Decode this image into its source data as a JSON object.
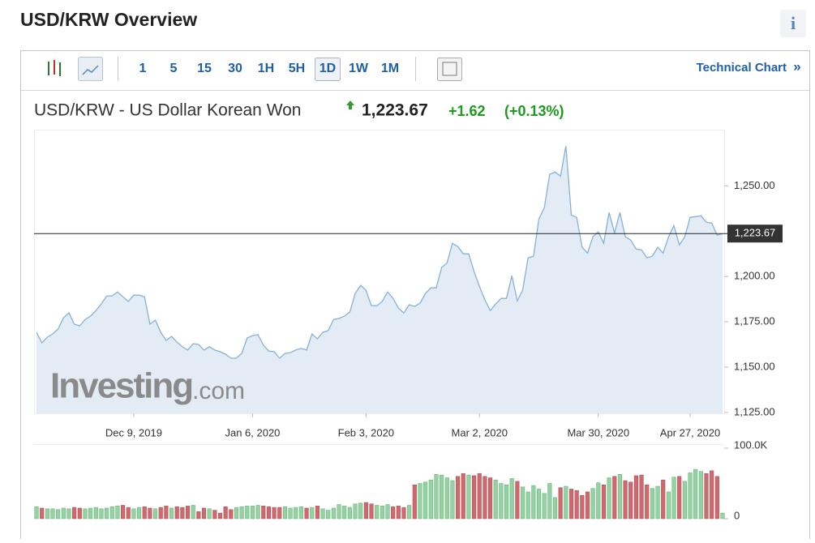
{
  "header": {
    "title": "USD/KRW Overview",
    "info": "i"
  },
  "toolbar": {
    "intervals": [
      "1",
      "5",
      "15",
      "30",
      "1H",
      "5H",
      "1D",
      "1W",
      "1M"
    ],
    "active_index": 6,
    "technical_chart": "Technical Chart",
    "chevron": "»"
  },
  "quote": {
    "name": "USD/KRW - US Dollar Korean Won",
    "price": "1,223.67",
    "change": "+1.62",
    "change_pct": "(+0.13%)"
  },
  "watermark": {
    "brand": "Investing",
    "suffix": ".com"
  },
  "chart_data": {
    "type": "line",
    "color": "#86b1d8",
    "fill": "#e3ecf4",
    "x": [
      0,
      1,
      2,
      3,
      4,
      5,
      6,
      7,
      8,
      9,
      10,
      11,
      12,
      13,
      14,
      15,
      16,
      17,
      18,
      19,
      20,
      21,
      22,
      23,
      24,
      25,
      26,
      27,
      28,
      29,
      30,
      31,
      32,
      33,
      34,
      35,
      36,
      37,
      38,
      39,
      40,
      41,
      42,
      43,
      44,
      45,
      46,
      47,
      48,
      49,
      50,
      51,
      52,
      53,
      54,
      55,
      56,
      57,
      58,
      59,
      60,
      61,
      62,
      63,
      64,
      65,
      66,
      67,
      68,
      69,
      70,
      71,
      72,
      73,
      74,
      75,
      76,
      77,
      78,
      79,
      80,
      81,
      82,
      83,
      84,
      85,
      86,
      87,
      88,
      89,
      90,
      91,
      92,
      93,
      94,
      95,
      96,
      97,
      98,
      99,
      100,
      101,
      102,
      103,
      104,
      105,
      106,
      107,
      108,
      109,
      110,
      111,
      112,
      113,
      114,
      115,
      116,
      117,
      118,
      119,
      120,
      121,
      122,
      123,
      124,
      125,
      126,
      127
    ],
    "values": [
      1169.2,
      1163.4,
      1166.5,
      1168.3,
      1171,
      1177.2,
      1179.9,
      1173.7,
      1172.8,
      1176.3,
      1178.1,
      1181.2,
      1184.8,
      1189.3,
      1189.3,
      1191.5,
      1188.8,
      1186.2,
      1189.7,
      1189.7,
      1188.8,
      1173.7,
      1175.9,
      1169.2,
      1164.7,
      1167,
      1163.8,
      1161.2,
      1159.4,
      1162.9,
      1162.5,
      1159.4,
      1161.2,
      1159.4,
      1158.5,
      1157.1,
      1154.9,
      1154.9,
      1157.6,
      1166.1,
      1167.4,
      1167.9,
      1162.1,
      1158.9,
      1158.5,
      1154.9,
      1157.6,
      1158,
      1159.4,
      1160.3,
      1159.4,
      1168.3,
      1165.6,
      1169.2,
      1170.1,
      1176.3,
      1176.8,
      1178.1,
      1180.4,
      1190.6,
      1195.1,
      1192.4,
      1183.9,
      1183.9,
      1186.2,
      1191.5,
      1187.9,
      1182.6,
      1179.9,
      1184.4,
      1183.5,
      1185.3,
      1190.6,
      1193.7,
      1193.7,
      1204.9,
      1207.6,
      1218.3,
      1216.5,
      1212.5,
      1212.5,
      1202.7,
      1194.6,
      1187.1,
      1181.2,
      1184.8,
      1187.9,
      1187.9,
      1200.4,
      1186.6,
      1192.4,
      1210.3,
      1211.2,
      1231.7,
      1237.9,
      1256.3,
      1257.6,
      1255.4,
      1271.9,
      1233.9,
      1232.6,
      1216.1,
      1212.9,
      1221.9,
      1224.6,
      1218.3,
      1235.3,
      1224.1,
      1235.3,
      1221.9,
      1220.1,
      1215.2,
      1214.7,
      1210.3,
      1211.2,
      1216.1,
      1212.9,
      1221.9,
      1228.1,
      1217.4,
      1221.9,
      1232.6,
      1233,
      1233.5,
      1229.9,
      1229.5,
      1222.8,
      1223.67
    ],
    "xlim": [
      0,
      127
    ],
    "xticks": [
      {
        "value": 18,
        "label": "Dec 9, 2019"
      },
      {
        "value": 40,
        "label": "Jan 6, 2020"
      },
      {
        "value": 61,
        "label": "Feb 3, 2020"
      },
      {
        "value": 82,
        "label": "Mar 2, 2020"
      },
      {
        "value": 104,
        "label": "Mar 30, 2020"
      },
      {
        "value": 121,
        "label": "Apr 27, 2020"
      }
    ],
    "ylim": [
      1124.5,
      1281
    ],
    "yticks": [
      {
        "value": 1125,
        "label": "1,125.00"
      },
      {
        "value": 1150,
        "label": "1,150.00"
      },
      {
        "value": 1175,
        "label": "1,175.00"
      },
      {
        "value": 1200,
        "label": "1,200.00"
      },
      {
        "value": 1250,
        "label": "1,250.00"
      }
    ],
    "last": {
      "value": 1223.67,
      "label": "1,223.67"
    },
    "volume": {
      "up_color": "#93d3a2",
      "down_color": "#d2686d",
      "ylim": [
        0,
        100000
      ],
      "yticks": [
        0,
        {
          "value": 100000,
          "label": "100.0K"
        }
      ],
      "values": [
        17000,
        15000,
        14000,
        14000,
        13000,
        15000,
        14000,
        16000,
        15000,
        14000,
        15000,
        16000,
        14000,
        15000,
        17000,
        18000,
        19000,
        16000,
        14000,
        16000,
        17000,
        15000,
        14000,
        16000,
        18000,
        15000,
        17000,
        16000,
        18000,
        19000,
        10000,
        15000,
        14000,
        12000,
        8000,
        17000,
        13000,
        16000,
        17000,
        18000,
        18000,
        19000,
        18000,
        17000,
        16000,
        16000,
        17000,
        15000,
        16000,
        17000,
        15000,
        16000,
        18000,
        14000,
        12000,
        15000,
        20000,
        18000,
        16000,
        21000,
        22000,
        23000,
        21000,
        19000,
        18000,
        20000,
        17000,
        18000,
        16000,
        19000,
        48000,
        50000,
        52000,
        55000,
        63000,
        62000,
        58000,
        54000,
        60000,
        64000,
        62000,
        61000,
        64000,
        60000,
        58000,
        55000,
        50000,
        48000,
        57000,
        53000,
        45000,
        38000,
        47000,
        42000,
        36000,
        50000,
        30000,
        44000,
        46000,
        42000,
        40000,
        33000,
        38000,
        43000,
        51000,
        48000,
        58000,
        60000,
        63000,
        54000,
        52000,
        61000,
        62000,
        48000,
        43000,
        46000,
        55000,
        38000,
        59000,
        60000,
        53000,
        65000,
        70000,
        67000,
        64000,
        68000,
        60000,
        8000
      ]
    }
  }
}
